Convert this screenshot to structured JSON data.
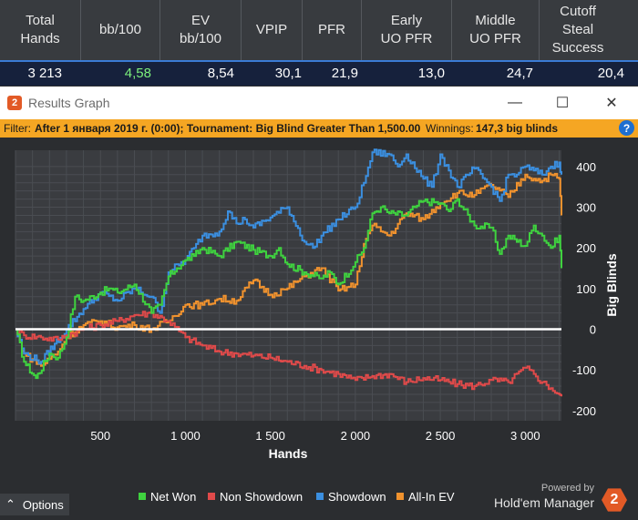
{
  "stats": {
    "headers": [
      "Total\nHands",
      "bb/100",
      "EV\nbb/100",
      "VPIP",
      "PFR",
      "Early\nUO PFR",
      "Middle\nUO PFR",
      "Cutoff\nSteal\nSuccess"
    ],
    "values": [
      "3 213",
      "4,58",
      "8,54",
      "30,1",
      "21,9",
      "13,0",
      "24,7",
      "20,4"
    ]
  },
  "window": {
    "title": "Results Graph",
    "minimize": "—",
    "maximize": "☐",
    "close": "✕"
  },
  "filter": {
    "label": "Filter:",
    "text": "After 1 января 2019 г. (0:00); Tournament: Big Blind Greater Than 1,500.00",
    "winnings_label": "Winnings:",
    "winnings_value": "147,3 big blinds",
    "help": "?"
  },
  "chart_data": {
    "type": "line",
    "xlabel": "Hands",
    "ylabel": "Big Blinds",
    "xlim": [
      0,
      3213
    ],
    "ylim": [
      -225,
      440
    ],
    "xticks": [
      500,
      1000,
      1500,
      2000,
      2500,
      3000
    ],
    "xtick_labels": [
      "500",
      "1 000",
      "1 500",
      "2 000",
      "2 500",
      "3 000"
    ],
    "yticks": [
      -200,
      -100,
      0,
      100,
      200,
      300,
      400
    ],
    "ytick_labels": [
      "-200",
      "-100",
      "0",
      "100",
      "200",
      "300",
      "400"
    ],
    "grid": true,
    "legend_position": "bottom",
    "series": [
      {
        "name": "Net Won",
        "color": "#3fd23f",
        "x": [
          0,
          50,
          120,
          200,
          250,
          300,
          350,
          400,
          500,
          550,
          600,
          700,
          800,
          850,
          900,
          950,
          1000,
          1050,
          1100,
          1200,
          1300,
          1400,
          1500,
          1550,
          1600,
          1700,
          1800,
          1850,
          1900,
          2000,
          2050,
          2100,
          2150,
          2200,
          2300,
          2350,
          2400,
          2500,
          2550,
          2600,
          2700,
          2800,
          2850,
          2900,
          3000,
          3050,
          3100,
          3150,
          3200,
          3213
        ],
        "y": [
          0,
          -80,
          -120,
          -60,
          -70,
          -20,
          80,
          70,
          90,
          100,
          90,
          110,
          40,
          60,
          130,
          150,
          170,
          180,
          200,
          180,
          215,
          195,
          180,
          200,
          160,
          140,
          125,
          140,
          110,
          165,
          200,
          285,
          300,
          285,
          280,
          300,
          315,
          310,
          290,
          320,
          255,
          250,
          185,
          230,
          205,
          255,
          230,
          200,
          230,
          150
        ]
      },
      {
        "name": "Non Showdown",
        "color": "#e04a4a",
        "x": [
          0,
          50,
          150,
          250,
          300,
          400,
          500,
          600,
          700,
          800,
          900,
          1000,
          1100,
          1200,
          1300,
          1400,
          1500,
          1600,
          1700,
          1800,
          1900,
          2000,
          2100,
          2200,
          2300,
          2400,
          2500,
          2600,
          2700,
          2800,
          2900,
          3000,
          3050,
          3100,
          3150,
          3200,
          3213
        ],
        "y": [
          0,
          -15,
          -20,
          -25,
          -15,
          0,
          10,
          20,
          35,
          40,
          20,
          -20,
          -40,
          -55,
          -60,
          -65,
          -70,
          -80,
          -90,
          -100,
          -110,
          -125,
          -115,
          -110,
          -130,
          -120,
          -125,
          -135,
          -140,
          -125,
          -130,
          -95,
          -110,
          -130,
          -145,
          -160,
          -165
        ]
      },
      {
        "name": "Showdown",
        "color": "#3b8fe0",
        "x": [
          0,
          50,
          150,
          300,
          400,
          500,
          600,
          700,
          800,
          850,
          900,
          1000,
          1050,
          1100,
          1200,
          1250,
          1300,
          1350,
          1400,
          1500,
          1600,
          1700,
          1750,
          1800,
          1900,
          2000,
          2050,
          2100,
          2200,
          2250,
          2300,
          2400,
          2450,
          2500,
          2550,
          2600,
          2700,
          2800,
          2850,
          2900,
          2950,
          3000,
          3050,
          3100,
          3150,
          3200,
          3213
        ],
        "y": [
          0,
          -60,
          -80,
          0,
          50,
          90,
          70,
          100,
          80,
          40,
          140,
          170,
          200,
          230,
          240,
          290,
          260,
          270,
          250,
          275,
          300,
          215,
          200,
          230,
          270,
          300,
          360,
          435,
          430,
          400,
          430,
          370,
          350,
          430,
          390,
          350,
          395,
          350,
          315,
          380,
          380,
          400,
          390,
          380,
          400,
          410,
          380
        ]
      },
      {
        "name": "All-In EV",
        "color": "#f0922e",
        "x": [
          0,
          50,
          150,
          250,
          300,
          400,
          500,
          600,
          700,
          800,
          900,
          1000,
          1100,
          1200,
          1300,
          1400,
          1500,
          1600,
          1700,
          1800,
          1900,
          2000,
          2050,
          2100,
          2200,
          2300,
          2400,
          2500,
          2600,
          2700,
          2800,
          2900,
          3000,
          3050,
          3100,
          3150,
          3200,
          3213
        ],
        "y": [
          0,
          -60,
          -90,
          -55,
          -20,
          10,
          20,
          5,
          10,
          0,
          20,
          60,
          60,
          75,
          70,
          120,
          85,
          100,
          130,
          150,
          95,
          110,
          210,
          255,
          230,
          285,
          270,
          310,
          335,
          330,
          355,
          325,
          380,
          370,
          365,
          380,
          370,
          280
        ]
      }
    ]
  },
  "options_label": "Options",
  "branding": {
    "powered": "Powered by",
    "product": "Hold'em Manager",
    "logo": "2"
  }
}
